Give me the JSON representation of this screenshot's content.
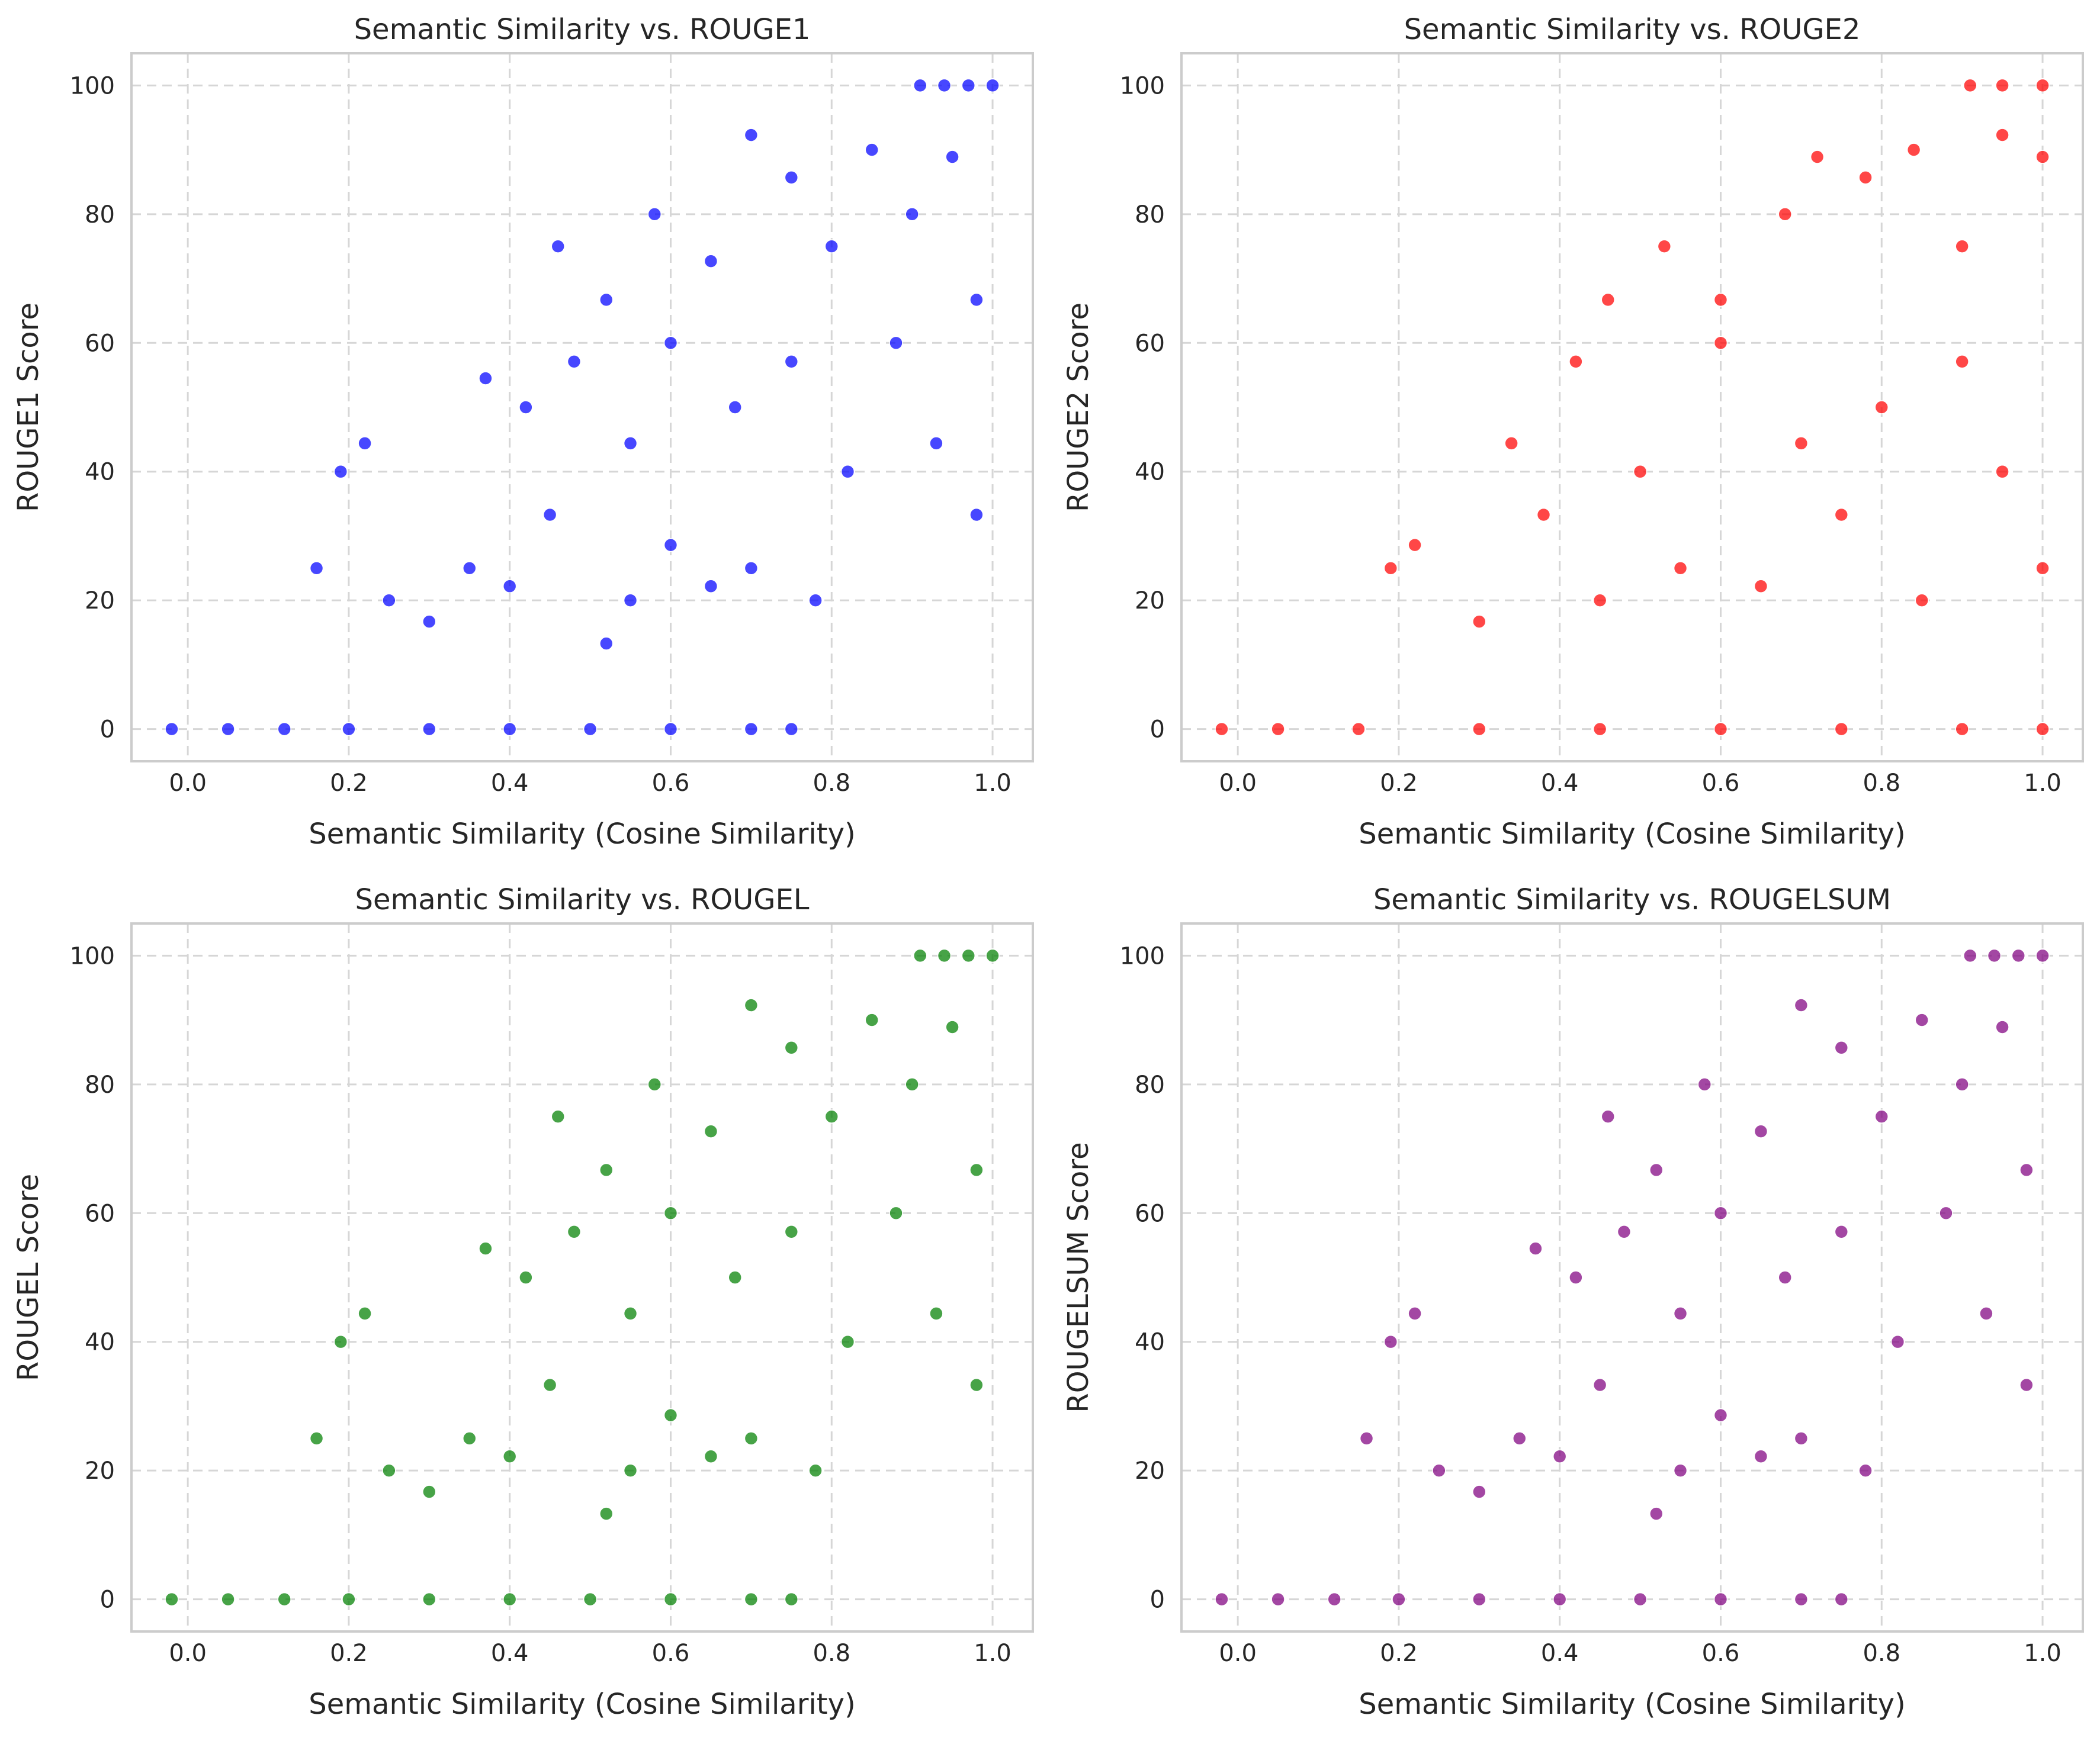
{
  "chart_data": [
    {
      "type": "scatter",
      "title": "Semantic Similarity vs. ROUGE1",
      "xlabel": "Semantic Similarity (Cosine Similarity)",
      "ylabel": "ROUGE1 Score",
      "color": "#0000ff",
      "xlim": [
        -0.07,
        1.05
      ],
      "ylim": [
        -5,
        105
      ],
      "xticks": [
        "0.0",
        "0.2",
        "0.4",
        "0.6",
        "0.8",
        "1.0"
      ],
      "yticks": [
        "0",
        "20",
        "40",
        "60",
        "80",
        "100"
      ],
      "grid": true,
      "points": [
        {
          "x": -0.02,
          "y": 0
        },
        {
          "x": 0.05,
          "y": 0
        },
        {
          "x": 0.12,
          "y": 0
        },
        {
          "x": 0.2,
          "y": 0
        },
        {
          "x": 0.3,
          "y": 0
        },
        {
          "x": 0.4,
          "y": 0
        },
        {
          "x": 0.5,
          "y": 0
        },
        {
          "x": 0.6,
          "y": 0
        },
        {
          "x": 0.7,
          "y": 0
        },
        {
          "x": 0.75,
          "y": 0
        },
        {
          "x": 0.16,
          "y": 25
        },
        {
          "x": 0.19,
          "y": 40
        },
        {
          "x": 0.22,
          "y": 44.4
        },
        {
          "x": 0.25,
          "y": 20
        },
        {
          "x": 0.3,
          "y": 16.7
        },
        {
          "x": 0.35,
          "y": 25
        },
        {
          "x": 0.4,
          "y": 22.2
        },
        {
          "x": 0.45,
          "y": 33.3
        },
        {
          "x": 0.52,
          "y": 13.3
        },
        {
          "x": 0.55,
          "y": 20
        },
        {
          "x": 0.6,
          "y": 28.6
        },
        {
          "x": 0.65,
          "y": 22.2
        },
        {
          "x": 0.7,
          "y": 25
        },
        {
          "x": 0.78,
          "y": 20
        },
        {
          "x": 0.37,
          "y": 54.5
        },
        {
          "x": 0.42,
          "y": 50
        },
        {
          "x": 0.48,
          "y": 57.1
        },
        {
          "x": 0.55,
          "y": 44.4
        },
        {
          "x": 0.6,
          "y": 60
        },
        {
          "x": 0.68,
          "y": 50
        },
        {
          "x": 0.75,
          "y": 57.1
        },
        {
          "x": 0.82,
          "y": 40
        },
        {
          "x": 0.88,
          "y": 60
        },
        {
          "x": 0.93,
          "y": 44.4
        },
        {
          "x": 0.98,
          "y": 33.3
        },
        {
          "x": 0.46,
          "y": 75
        },
        {
          "x": 0.52,
          "y": 66.7
        },
        {
          "x": 0.58,
          "y": 80
        },
        {
          "x": 0.65,
          "y": 72.7
        },
        {
          "x": 0.7,
          "y": 92.3
        },
        {
          "x": 0.75,
          "y": 85.7
        },
        {
          "x": 0.8,
          "y": 75
        },
        {
          "x": 0.85,
          "y": 90
        },
        {
          "x": 0.9,
          "y": 80
        },
        {
          "x": 0.95,
          "y": 88.9
        },
        {
          "x": 0.98,
          "y": 66.7
        },
        {
          "x": 0.91,
          "y": 100
        },
        {
          "x": 0.94,
          "y": 100
        },
        {
          "x": 0.97,
          "y": 100
        },
        {
          "x": 1.0,
          "y": 100
        }
      ]
    },
    {
      "type": "scatter",
      "title": "Semantic Similarity vs. ROUGE2",
      "xlabel": "Semantic Similarity (Cosine Similarity)",
      "ylabel": "ROUGE2 Score",
      "color": "#ff0000",
      "xlim": [
        -0.07,
        1.05
      ],
      "ylim": [
        -5,
        105
      ],
      "xticks": [
        "0.0",
        "0.2",
        "0.4",
        "0.6",
        "0.8",
        "1.0"
      ],
      "yticks": [
        "0",
        "20",
        "40",
        "60",
        "80",
        "100"
      ],
      "grid": true,
      "points": [
        {
          "x": -0.02,
          "y": 0
        },
        {
          "x": 0.05,
          "y": 0
        },
        {
          "x": 0.15,
          "y": 0
        },
        {
          "x": 0.3,
          "y": 0
        },
        {
          "x": 0.45,
          "y": 0
        },
        {
          "x": 0.6,
          "y": 0
        },
        {
          "x": 0.75,
          "y": 0
        },
        {
          "x": 0.9,
          "y": 0
        },
        {
          "x": 1.0,
          "y": 0
        },
        {
          "x": 0.19,
          "y": 25
        },
        {
          "x": 0.22,
          "y": 28.6
        },
        {
          "x": 0.3,
          "y": 16.7
        },
        {
          "x": 0.34,
          "y": 44.4
        },
        {
          "x": 0.38,
          "y": 33.3
        },
        {
          "x": 0.42,
          "y": 57.1
        },
        {
          "x": 0.45,
          "y": 20
        },
        {
          "x": 0.5,
          "y": 40
        },
        {
          "x": 0.55,
          "y": 25
        },
        {
          "x": 0.6,
          "y": 60
        },
        {
          "x": 0.65,
          "y": 22.2
        },
        {
          "x": 0.7,
          "y": 44.4
        },
        {
          "x": 0.75,
          "y": 33.3
        },
        {
          "x": 0.8,
          "y": 50
        },
        {
          "x": 0.85,
          "y": 20
        },
        {
          "x": 0.9,
          "y": 57.1
        },
        {
          "x": 0.95,
          "y": 40
        },
        {
          "x": 1.0,
          "y": 25
        },
        {
          "x": 0.46,
          "y": 66.7
        },
        {
          "x": 0.53,
          "y": 75
        },
        {
          "x": 0.6,
          "y": 66.7
        },
        {
          "x": 0.68,
          "y": 80
        },
        {
          "x": 0.72,
          "y": 88.9
        },
        {
          "x": 0.78,
          "y": 85.7
        },
        {
          "x": 0.84,
          "y": 90
        },
        {
          "x": 0.9,
          "y": 75
        },
        {
          "x": 0.95,
          "y": 92.3
        },
        {
          "x": 1.0,
          "y": 88.9
        },
        {
          "x": 0.91,
          "y": 100
        },
        {
          "x": 0.95,
          "y": 100
        },
        {
          "x": 1.0,
          "y": 100
        }
      ]
    },
    {
      "type": "scatter",
      "title": "Semantic Similarity vs. ROUGEL",
      "xlabel": "Semantic Similarity (Cosine Similarity)",
      "ylabel": "ROUGEL Score",
      "color": "#008000",
      "xlim": [
        -0.07,
        1.05
      ],
      "ylim": [
        -5,
        105
      ],
      "xticks": [
        "0.0",
        "0.2",
        "0.4",
        "0.6",
        "0.8",
        "1.0"
      ],
      "yticks": [
        "0",
        "20",
        "40",
        "60",
        "80",
        "100"
      ],
      "grid": true,
      "points": [
        {
          "x": -0.02,
          "y": 0
        },
        {
          "x": 0.05,
          "y": 0
        },
        {
          "x": 0.12,
          "y": 0
        },
        {
          "x": 0.2,
          "y": 0
        },
        {
          "x": 0.3,
          "y": 0
        },
        {
          "x": 0.4,
          "y": 0
        },
        {
          "x": 0.5,
          "y": 0
        },
        {
          "x": 0.6,
          "y": 0
        },
        {
          "x": 0.7,
          "y": 0
        },
        {
          "x": 0.75,
          "y": 0
        },
        {
          "x": 0.16,
          "y": 25
        },
        {
          "x": 0.19,
          "y": 40
        },
        {
          "x": 0.22,
          "y": 44.4
        },
        {
          "x": 0.25,
          "y": 20
        },
        {
          "x": 0.3,
          "y": 16.7
        },
        {
          "x": 0.35,
          "y": 25
        },
        {
          "x": 0.4,
          "y": 22.2
        },
        {
          "x": 0.45,
          "y": 33.3
        },
        {
          "x": 0.52,
          "y": 13.3
        },
        {
          "x": 0.55,
          "y": 20
        },
        {
          "x": 0.6,
          "y": 28.6
        },
        {
          "x": 0.65,
          "y": 22.2
        },
        {
          "x": 0.7,
          "y": 25
        },
        {
          "x": 0.78,
          "y": 20
        },
        {
          "x": 0.37,
          "y": 54.5
        },
        {
          "x": 0.42,
          "y": 50
        },
        {
          "x": 0.48,
          "y": 57.1
        },
        {
          "x": 0.55,
          "y": 44.4
        },
        {
          "x": 0.6,
          "y": 60
        },
        {
          "x": 0.68,
          "y": 50
        },
        {
          "x": 0.75,
          "y": 57.1
        },
        {
          "x": 0.82,
          "y": 40
        },
        {
          "x": 0.88,
          "y": 60
        },
        {
          "x": 0.93,
          "y": 44.4
        },
        {
          "x": 0.98,
          "y": 33.3
        },
        {
          "x": 0.46,
          "y": 75
        },
        {
          "x": 0.52,
          "y": 66.7
        },
        {
          "x": 0.58,
          "y": 80
        },
        {
          "x": 0.65,
          "y": 72.7
        },
        {
          "x": 0.7,
          "y": 92.3
        },
        {
          "x": 0.75,
          "y": 85.7
        },
        {
          "x": 0.8,
          "y": 75
        },
        {
          "x": 0.85,
          "y": 90
        },
        {
          "x": 0.9,
          "y": 80
        },
        {
          "x": 0.95,
          "y": 88.9
        },
        {
          "x": 0.98,
          "y": 66.7
        },
        {
          "x": 0.91,
          "y": 100
        },
        {
          "x": 0.94,
          "y": 100
        },
        {
          "x": 0.97,
          "y": 100
        },
        {
          "x": 1.0,
          "y": 100
        }
      ]
    },
    {
      "type": "scatter",
      "title": "Semantic Similarity vs. ROUGELSUM",
      "xlabel": "Semantic Similarity (Cosine Similarity)",
      "ylabel": "ROUGELSUM Score",
      "color": "#800080",
      "xlim": [
        -0.07,
        1.05
      ],
      "ylim": [
        -5,
        105
      ],
      "xticks": [
        "0.0",
        "0.2",
        "0.4",
        "0.6",
        "0.8",
        "1.0"
      ],
      "yticks": [
        "0",
        "20",
        "40",
        "60",
        "80",
        "100"
      ],
      "grid": true,
      "points": [
        {
          "x": -0.02,
          "y": 0
        },
        {
          "x": 0.05,
          "y": 0
        },
        {
          "x": 0.12,
          "y": 0
        },
        {
          "x": 0.2,
          "y": 0
        },
        {
          "x": 0.3,
          "y": 0
        },
        {
          "x": 0.4,
          "y": 0
        },
        {
          "x": 0.5,
          "y": 0
        },
        {
          "x": 0.6,
          "y": 0
        },
        {
          "x": 0.7,
          "y": 0
        },
        {
          "x": 0.75,
          "y": 0
        },
        {
          "x": 0.16,
          "y": 25
        },
        {
          "x": 0.19,
          "y": 40
        },
        {
          "x": 0.22,
          "y": 44.4
        },
        {
          "x": 0.25,
          "y": 20
        },
        {
          "x": 0.3,
          "y": 16.7
        },
        {
          "x": 0.35,
          "y": 25
        },
        {
          "x": 0.4,
          "y": 22.2
        },
        {
          "x": 0.45,
          "y": 33.3
        },
        {
          "x": 0.52,
          "y": 13.3
        },
        {
          "x": 0.55,
          "y": 20
        },
        {
          "x": 0.6,
          "y": 28.6
        },
        {
          "x": 0.65,
          "y": 22.2
        },
        {
          "x": 0.7,
          "y": 25
        },
        {
          "x": 0.78,
          "y": 20
        },
        {
          "x": 0.37,
          "y": 54.5
        },
        {
          "x": 0.42,
          "y": 50
        },
        {
          "x": 0.48,
          "y": 57.1
        },
        {
          "x": 0.55,
          "y": 44.4
        },
        {
          "x": 0.6,
          "y": 60
        },
        {
          "x": 0.68,
          "y": 50
        },
        {
          "x": 0.75,
          "y": 57.1
        },
        {
          "x": 0.82,
          "y": 40
        },
        {
          "x": 0.88,
          "y": 60
        },
        {
          "x": 0.93,
          "y": 44.4
        },
        {
          "x": 0.98,
          "y": 33.3
        },
        {
          "x": 0.46,
          "y": 75
        },
        {
          "x": 0.52,
          "y": 66.7
        },
        {
          "x": 0.58,
          "y": 80
        },
        {
          "x": 0.65,
          "y": 72.7
        },
        {
          "x": 0.7,
          "y": 92.3
        },
        {
          "x": 0.75,
          "y": 85.7
        },
        {
          "x": 0.8,
          "y": 75
        },
        {
          "x": 0.85,
          "y": 90
        },
        {
          "x": 0.9,
          "y": 80
        },
        {
          "x": 0.95,
          "y": 88.9
        },
        {
          "x": 0.98,
          "y": 66.7
        },
        {
          "x": 0.91,
          "y": 100
        },
        {
          "x": 0.94,
          "y": 100
        },
        {
          "x": 0.97,
          "y": 100
        },
        {
          "x": 1.0,
          "y": 100
        }
      ]
    }
  ]
}
